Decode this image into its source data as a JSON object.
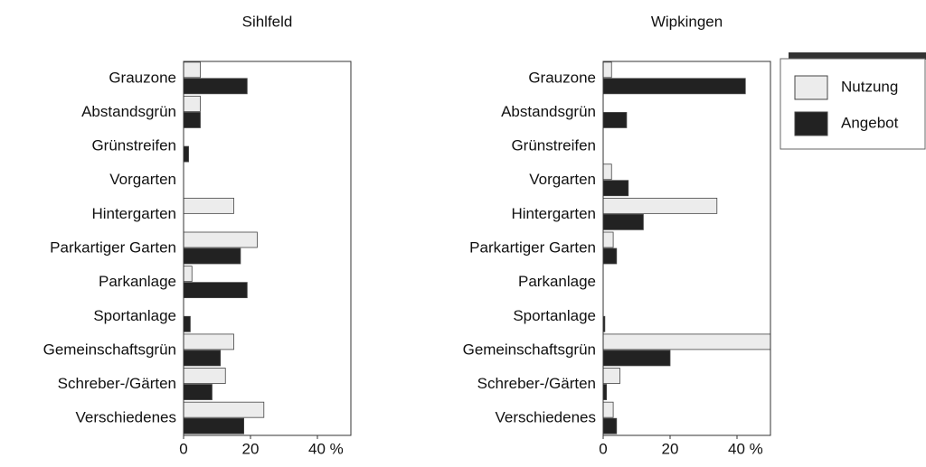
{
  "chart_data": [
    {
      "type": "barh",
      "title": "Sihlfeld",
      "categories": [
        "Grauzone",
        "Abstandsgrün",
        "Grünstreifen",
        "Vorgarten",
        "Hintergarten",
        "Parkartiger Garten",
        "Parkanlage",
        "Sportanlage",
        "Gemeinschaftsgrün",
        "Schreber-/Gärten",
        "Verschiedenes"
      ],
      "series": [
        {
          "name": "Nutzung",
          "color": "#ececec",
          "values": [
            5,
            5,
            0,
            0,
            15,
            22,
            2.5,
            0,
            15,
            12.5,
            24
          ]
        },
        {
          "name": "Angebot",
          "color": "#222222",
          "values": [
            19,
            5,
            1.5,
            0,
            0,
            17,
            19,
            2,
            11,
            8.5,
            18
          ]
        }
      ],
      "xlim": [
        0,
        50
      ],
      "xticks": [
        0,
        20,
        {
          "value": 40,
          "label": "40 %"
        }
      ]
    },
    {
      "type": "barh",
      "title": "Wipkingen",
      "categories": [
        "Grauzone",
        "Abstandsgrün",
        "Grünstreifen",
        "Vorgarten",
        "Hintergarten",
        "Parkartiger Garten",
        "Parkanlage",
        "Sportanlage",
        "Gemeinschaftsgrün",
        "Schreber-/Gärten",
        "Verschiedenes"
      ],
      "series": [
        {
          "name": "Nutzung",
          "color": "#ececec",
          "values": [
            2.5,
            0,
            0,
            2.5,
            34,
            3,
            0,
            0,
            50,
            5,
            3
          ]
        },
        {
          "name": "Angebot",
          "color": "#222222",
          "values": [
            42.5,
            7,
            0,
            7.5,
            12,
            4,
            0,
            0.5,
            20,
            1,
            4
          ]
        }
      ],
      "xlim": [
        0,
        50
      ],
      "xticks": [
        0,
        20,
        {
          "value": 40,
          "label": "40 %"
        }
      ]
    }
  ]
}
